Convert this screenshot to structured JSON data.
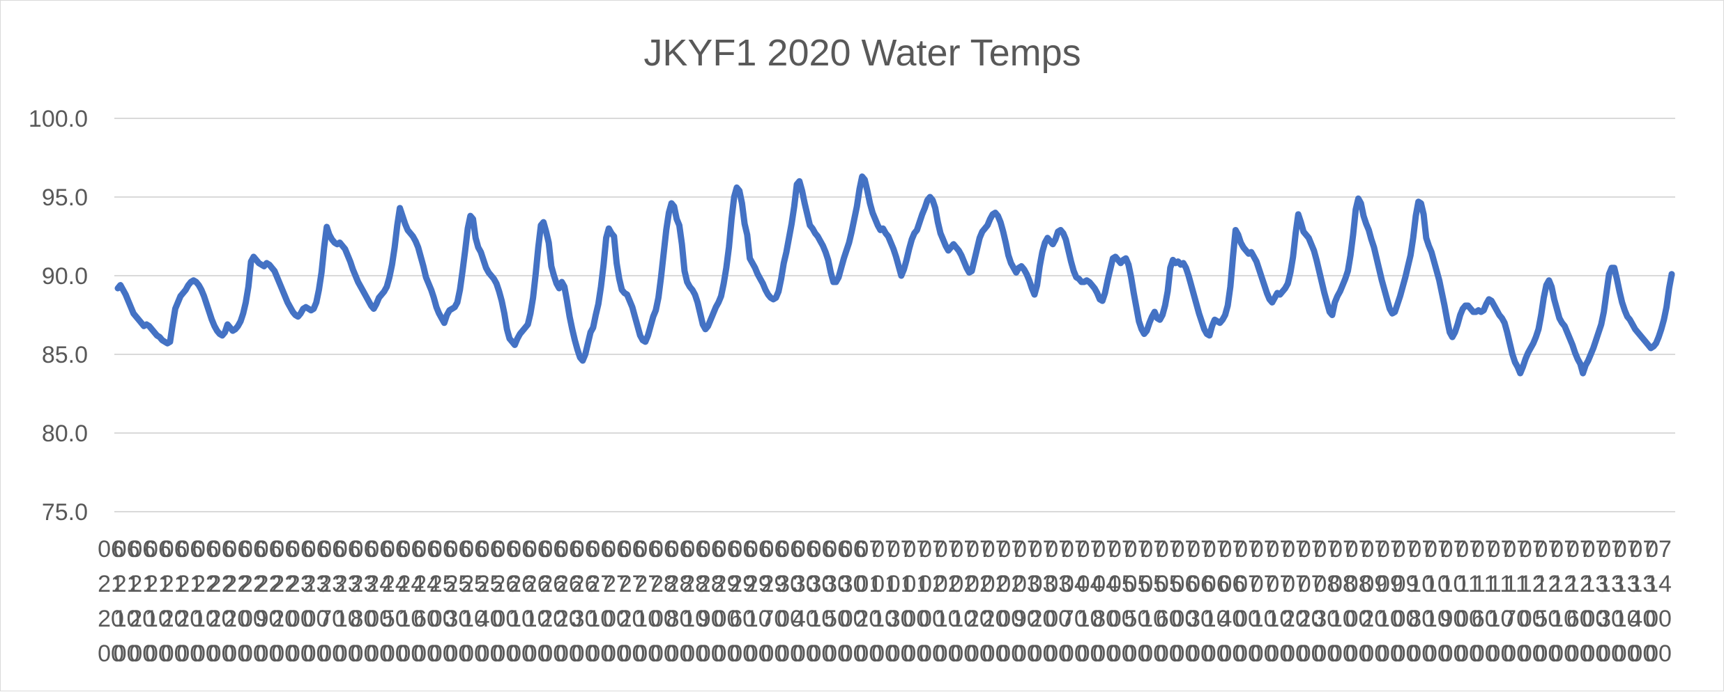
{
  "chart_data": {
    "type": "line",
    "title": "JKYF1 2020 Water Temps",
    "xlabel": "",
    "ylabel": "",
    "ylim": [
      75.0,
      100.0
    ],
    "yticks": [
      "100.0",
      "95.0",
      "90.0",
      "85.0",
      "80.0",
      "75.0"
    ],
    "grid": true,
    "legend": "none",
    "series_color": "#4472c4",
    "x_tick_labels": [
      "06212000",
      "06211000",
      "06212000",
      "06211000",
      "06212000",
      "06212000",
      "06221000",
      "06222000",
      "06222000",
      "06220000",
      "06229000",
      "06222000",
      "06230000",
      "06230000",
      "06237000",
      "06231000",
      "06238000",
      "06240000",
      "06245000",
      "06241000",
      "06246000",
      "06250000",
      "06253000",
      "06251000",
      "06254000",
      "06260000",
      "06261000",
      "06261000",
      "06262000",
      "06262000",
      "06263000",
      "06271000",
      "06270000",
      "06272000",
      "06271000",
      "06280000",
      "06288000",
      "06281000",
      "06289000",
      "06290000",
      "06296000",
      "06291000",
      "06297000",
      "06300000",
      "06304000",
      "06301000",
      "06305000",
      "06300000",
      "07012000",
      "07011000",
      "07013000",
      "07010000",
      "07020000",
      "07021000",
      "07021000",
      "07022000",
      "07022000",
      "07020000",
      "07039000",
      "07032000",
      "07030000",
      "07047000",
      "07041000",
      "07048000",
      "07050000",
      "07055000",
      "07051000",
      "07056000",
      "07060000",
      "07063000",
      "07061000",
      "07064000",
      "07070000",
      "07071000",
      "07071000",
      "07072000",
      "07072000",
      "07083000",
      "07081000",
      "07080000",
      "07092000",
      "07091000",
      "07090000",
      "07108000",
      "07101000",
      "07109000",
      "07110000",
      "07116000",
      "07111000",
      "07117000",
      "07120000",
      "07125000",
      "07121000",
      "07126000",
      "07130000",
      "07133000",
      "07131000",
      "07134000",
      "07140000"
    ],
    "x_start": "2020-06-21",
    "x_step_hours": 1,
    "values": [
      89.2,
      89.4,
      89.1,
      88.8,
      88.4,
      88.0,
      87.6,
      87.4,
      87.2,
      87.0,
      86.8,
      86.9,
      86.8,
      86.6,
      86.4,
      86.2,
      86.1,
      85.9,
      85.8,
      85.7,
      85.8,
      86.9,
      87.9,
      88.3,
      88.7,
      88.9,
      89.1,
      89.4,
      89.6,
      89.7,
      89.6,
      89.4,
      89.1,
      88.7,
      88.2,
      87.7,
      87.2,
      86.8,
      86.5,
      86.3,
      86.2,
      86.4,
      86.9,
      86.7,
      86.5,
      86.6,
      86.8,
      87.1,
      87.6,
      88.3,
      89.3,
      90.9,
      91.2,
      91.0,
      90.8,
      90.7,
      90.6,
      90.8,
      90.7,
      90.5,
      90.3,
      89.9,
      89.5,
      89.1,
      88.7,
      88.3,
      88.0,
      87.7,
      87.5,
      87.4,
      87.6,
      87.9,
      88.0,
      87.9,
      87.8,
      87.9,
      88.3,
      89.1,
      90.2,
      91.8,
      93.1,
      92.6,
      92.3,
      92.1,
      92.0,
      92.1,
      91.9,
      91.7,
      91.3,
      90.9,
      90.4,
      90.0,
      89.6,
      89.3,
      89.0,
      88.7,
      88.4,
      88.1,
      87.9,
      88.2,
      88.6,
      88.8,
      89.0,
      89.3,
      89.9,
      90.7,
      91.8,
      93.2,
      94.3,
      93.8,
      93.3,
      92.9,
      92.7,
      92.5,
      92.2,
      91.8,
      91.2,
      90.6,
      89.9,
      89.5,
      89.1,
      88.6,
      88.0,
      87.6,
      87.3,
      87.0,
      87.5,
      87.8,
      87.9,
      88.0,
      88.3,
      89.1,
      90.3,
      91.6,
      93.0,
      93.8,
      93.6,
      92.4,
      91.8,
      91.5,
      91.0,
      90.5,
      90.2,
      90.0,
      89.8,
      89.5,
      89.0,
      88.4,
      87.6,
      86.6,
      86.0,
      85.8,
      85.6,
      86.0,
      86.3,
      86.5,
      86.7,
      86.9,
      87.6,
      88.6,
      90.1,
      91.8,
      93.2,
      93.4,
      92.8,
      92.1,
      90.6,
      90.0,
      89.5,
      89.2,
      89.6,
      89.3,
      88.4,
      87.4,
      86.6,
      85.9,
      85.3,
      84.8,
      84.6,
      85.0,
      85.7,
      86.4,
      86.7,
      87.5,
      88.2,
      89.3,
      90.7,
      92.4,
      93.0,
      92.7,
      92.5,
      90.8,
      89.8,
      89.1,
      88.9,
      88.8,
      88.4,
      88.0,
      87.4,
      86.8,
      86.2,
      85.9,
      85.8,
      86.2,
      86.8,
      87.4,
      87.8,
      88.6,
      89.9,
      91.4,
      92.9,
      94.0,
      94.6,
      94.4,
      93.6,
      93.2,
      92.0,
      90.3,
      89.6,
      89.3,
      89.1,
      88.8,
      88.3,
      87.6,
      86.9,
      86.6,
      86.8,
      87.2,
      87.6,
      88.0,
      88.3,
      88.7,
      89.5,
      90.5,
      91.8,
      93.6,
      95.0,
      95.6,
      95.4,
      94.6,
      93.3,
      92.6,
      91.1,
      90.8,
      90.5,
      90.1,
      89.8,
      89.5,
      89.1,
      88.8,
      88.6,
      88.5,
      88.6,
      89.0,
      89.8,
      90.8,
      91.5,
      92.4,
      93.3,
      94.4,
      95.8,
      96.0,
      95.4,
      94.6,
      93.9,
      93.2,
      93.0,
      92.7,
      92.5,
      92.2,
      91.9,
      91.5,
      91.0,
      90.2,
      89.6,
      89.6,
      89.9,
      90.5,
      91.1,
      91.6,
      92.1,
      92.8,
      93.6,
      94.4,
      95.5,
      96.3,
      96.1,
      95.4,
      94.6,
      94.0,
      93.6,
      93.2,
      92.9,
      93.0,
      92.7,
      92.5,
      92.1,
      91.7,
      91.2,
      90.6,
      90.0,
      90.4,
      91.0,
      91.7,
      92.3,
      92.7,
      92.9,
      93.4,
      93.9,
      94.3,
      94.8,
      95.0,
      94.8,
      94.3,
      93.4,
      92.7,
      92.3,
      91.9,
      91.6,
      91.8,
      92.0,
      91.8,
      91.6,
      91.3,
      90.9,
      90.5,
      90.2,
      90.3,
      91.0,
      91.7,
      92.4,
      92.8,
      93.0,
      93.2,
      93.6,
      93.9,
      94.0,
      93.8,
      93.4,
      92.8,
      92.1,
      91.3,
      90.8,
      90.5,
      90.2,
      90.5,
      90.6,
      90.4,
      90.1,
      89.7,
      89.2,
      88.8,
      89.4,
      90.6,
      91.5,
      92.1,
      92.4,
      92.2,
      92.0,
      92.3,
      92.8,
      92.9,
      92.7,
      92.3,
      91.6,
      90.9,
      90.3,
      89.9,
      89.8,
      89.6,
      89.6,
      89.7,
      89.6,
      89.4,
      89.2,
      88.9,
      88.5,
      88.4,
      88.9,
      89.7,
      90.4,
      91.1,
      91.2,
      91.0,
      90.8,
      91.0,
      91.1,
      90.7,
      89.9,
      88.9,
      88.0,
      87.1,
      86.6,
      86.3,
      86.5,
      87.0,
      87.4,
      87.7,
      87.3,
      87.2,
      87.5,
      88.1,
      89.0,
      90.5,
      91.0,
      90.8,
      90.9,
      90.7,
      90.8,
      90.5,
      90.0,
      89.4,
      88.8,
      88.2,
      87.6,
      87.1,
      86.6,
      86.3,
      86.2,
      86.8,
      87.2,
      87.1,
      87.0,
      87.2,
      87.5,
      88.1,
      89.3,
      91.2,
      92.9,
      92.6,
      92.1,
      91.8,
      91.6,
      91.4,
      91.5,
      91.2,
      90.9,
      90.4,
      89.9,
      89.4,
      88.9,
      88.5,
      88.3,
      88.6,
      88.9,
      88.8,
      89.0,
      89.2,
      89.5,
      90.2,
      91.2,
      92.7,
      93.9,
      93.4,
      92.8,
      92.6,
      92.4,
      92.0,
      91.6,
      91.0,
      90.3,
      89.6,
      88.9,
      88.3,
      87.7,
      87.5,
      88.3,
      88.7,
      89.0,
      89.4,
      89.8,
      90.3,
      91.3,
      92.6,
      94.2,
      94.9,
      94.6,
      93.8,
      93.3,
      92.9,
      92.3,
      91.8,
      91.1,
      90.4,
      89.7,
      89.1,
      88.5,
      87.9,
      87.6,
      87.7,
      88.2,
      88.7,
      89.3,
      89.9,
      90.6,
      91.3,
      92.4,
      93.8,
      94.7,
      94.6,
      93.9,
      92.4,
      91.9,
      91.5,
      90.9,
      90.3,
      89.7,
      88.9,
      88.1,
      87.2,
      86.4,
      86.1,
      86.4,
      86.9,
      87.5,
      87.9,
      88.1,
      88.1,
      87.9,
      87.7,
      87.7,
      87.8,
      87.7,
      87.8,
      88.2,
      88.5,
      88.4,
      88.1,
      87.8,
      87.5,
      87.3,
      87.0,
      86.4,
      85.7,
      85.0,
      84.5,
      84.2,
      83.8,
      84.2,
      84.7,
      85.1,
      85.4,
      85.7,
      86.1,
      86.6,
      87.5,
      88.6,
      89.4,
      89.7,
      89.3,
      88.5,
      87.9,
      87.3,
      87.0,
      86.8,
      86.4,
      86.0,
      85.6,
      85.1,
      84.7,
      84.4,
      83.8,
      84.3,
      84.6,
      85.0,
      85.4,
      85.9,
      86.4,
      86.9,
      87.7,
      88.9,
      90.1,
      90.5,
      90.5,
      89.8,
      89.0,
      88.3,
      87.8,
      87.4,
      87.2,
      86.9,
      86.6,
      86.4,
      86.2,
      86.0,
      85.8,
      85.6,
      85.4,
      85.5,
      85.7,
      86.1,
      86.6,
      87.2,
      88.0,
      89.2,
      90.1
    ]
  }
}
